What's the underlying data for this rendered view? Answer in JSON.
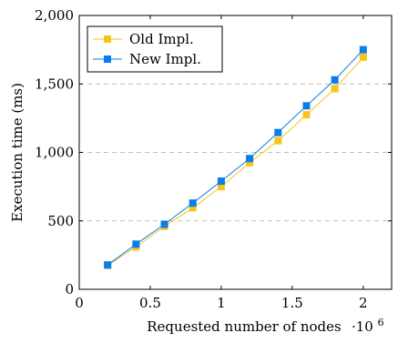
{
  "chart_data": {
    "type": "line",
    "title": "",
    "xlabel": "Requested number of nodes",
    "ylabel": "Execution time (ms)",
    "x_exponent_label": "·10",
    "x_exponent_power": "6",
    "xlim": [
      0,
      2.2
    ],
    "ylim": [
      0,
      2000
    ],
    "x": [
      0.2,
      0.4,
      0.6,
      0.8,
      1.0,
      1.2,
      1.4,
      1.6,
      1.8,
      2.0
    ],
    "x_ticks": [
      0,
      0.5,
      1,
      1.5,
      2
    ],
    "x_tick_labels": [
      "0",
      "0.5",
      "1",
      "1.5",
      "2"
    ],
    "y_ticks": [
      0,
      500,
      1000,
      1500,
      2000
    ],
    "y_tick_labels": [
      "0",
      "500",
      "1,000",
      "1,500",
      "2,000"
    ],
    "grid": "horizontal dashed",
    "legend_position": "top-left",
    "series": [
      {
        "name": "Old Impl.",
        "color": "#f5c518",
        "values": [
          175,
          310,
          460,
          595,
          750,
          925,
          1085,
          1275,
          1465,
          1695
        ]
      },
      {
        "name": "New Impl.",
        "color": "#0a7de8",
        "values": [
          178,
          330,
          475,
          630,
          790,
          955,
          1145,
          1340,
          1530,
          1750
        ]
      }
    ]
  }
}
